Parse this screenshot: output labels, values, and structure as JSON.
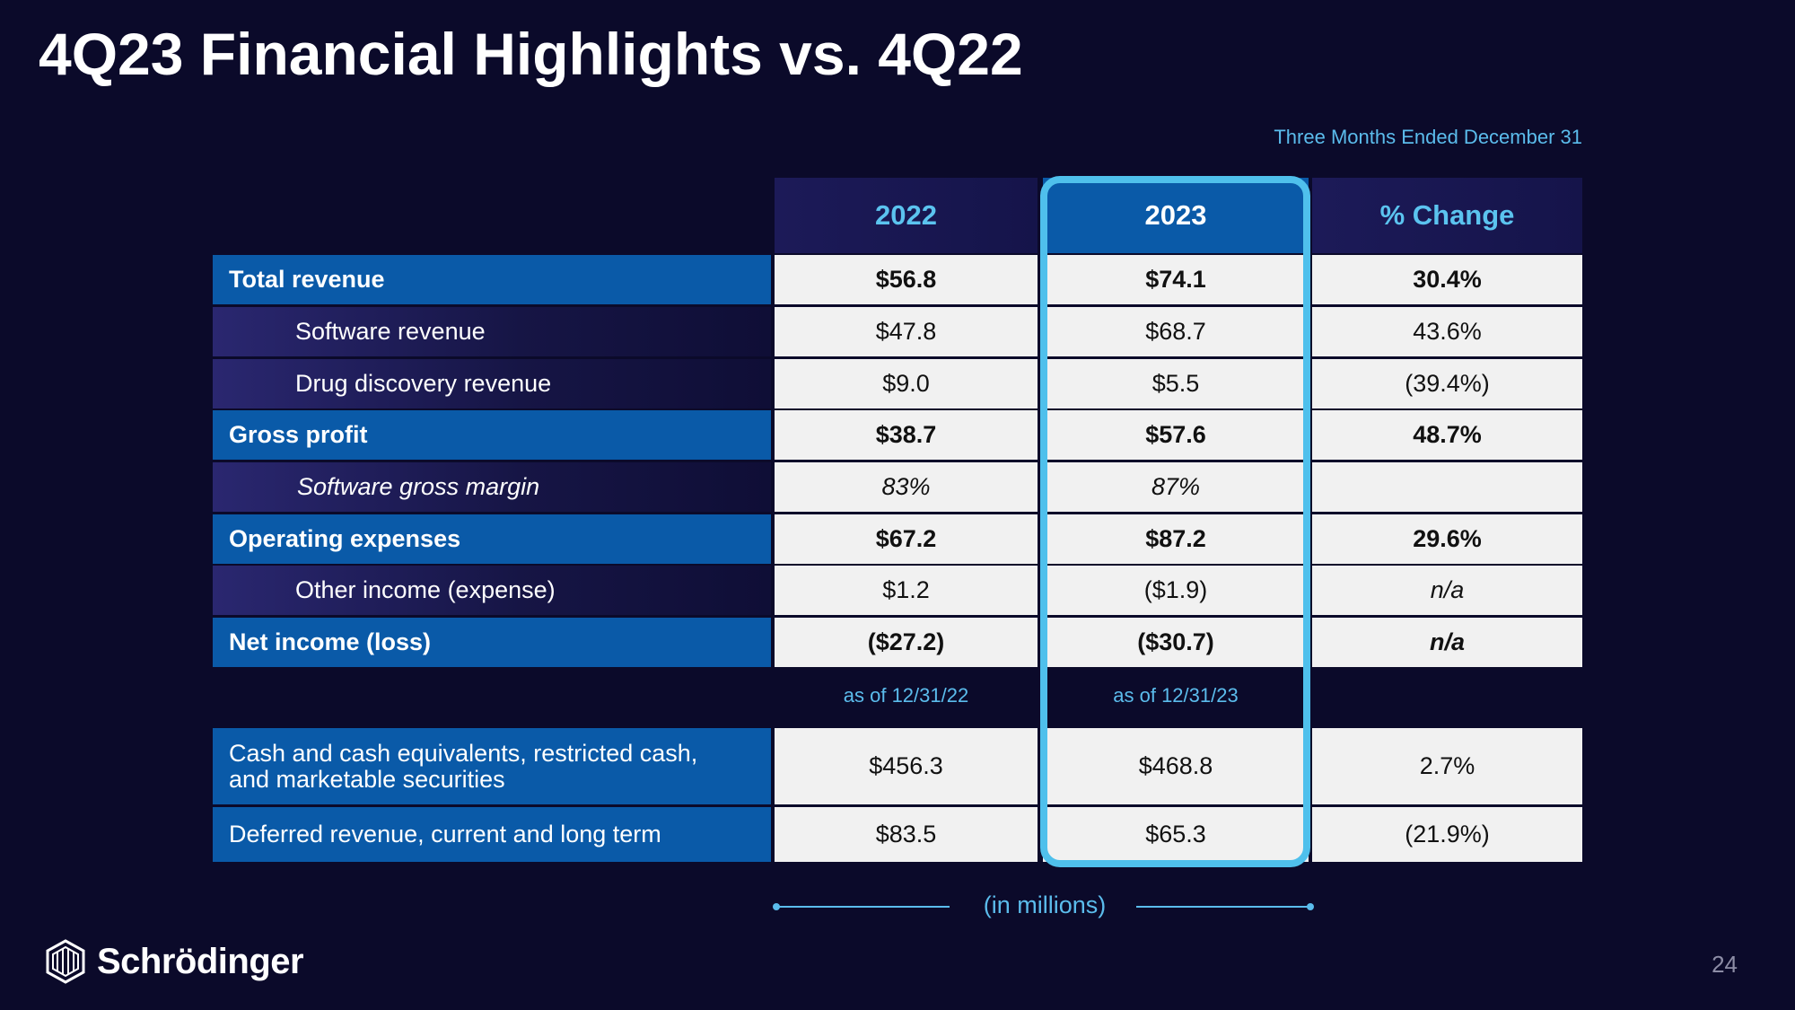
{
  "title": "4Q23 Financial Highlights vs. 4Q22",
  "period_label": "Three Months Ended December 31",
  "columns": [
    "2022",
    "2023",
    "% Change"
  ],
  "rows": [
    {
      "label": "Total revenue",
      "v2022": "$56.8",
      "v2023": "$74.1",
      "change": "30.4%"
    },
    {
      "label": "Software revenue",
      "v2022": "$47.8",
      "v2023": "$68.7",
      "change": "43.6%"
    },
    {
      "label": "Drug discovery revenue",
      "v2022": "$9.0",
      "v2023": "$5.5",
      "change": "(39.4%)"
    },
    {
      "label": "Gross profit",
      "v2022": "$38.7",
      "v2023": "$57.6",
      "change": "48.7%"
    },
    {
      "label": "Software gross margin",
      "v2022": "83%",
      "v2023": "87%",
      "change": ""
    },
    {
      "label": "Operating expenses",
      "v2022": "$67.2",
      "v2023": "$87.2",
      "change": "29.6%"
    },
    {
      "label": "Other income (expense)",
      "v2022": "$1.2",
      "v2023": "($1.9)",
      "change": "n/a"
    },
    {
      "label": "Net income (loss)",
      "v2022": "($27.2)",
      "v2023": "($30.7)",
      "change": "n/a"
    }
  ],
  "as_of": [
    "as of 12/31/22",
    "as of 12/31/23"
  ],
  "balance_rows": [
    {
      "label_line1": "Cash and cash equivalents, restricted cash,",
      "label_line2": "and marketable securities",
      "v2022": "$456.3",
      "v2023": "$468.8",
      "change": "2.7%"
    },
    {
      "label": "Deferred revenue, current and long term",
      "v2022": "$83.5",
      "v2023": "$65.3",
      "change": "(21.9%)"
    }
  ],
  "units_note": "(in millions)",
  "logo_text": "Schrödinger",
  "page_number": "24",
  "colors": {
    "background": "#0b0a2a",
    "accent_blue": "#0a5aa8",
    "highlight": "#4fc0ec",
    "light_blue_text": "#5bbcec"
  }
}
